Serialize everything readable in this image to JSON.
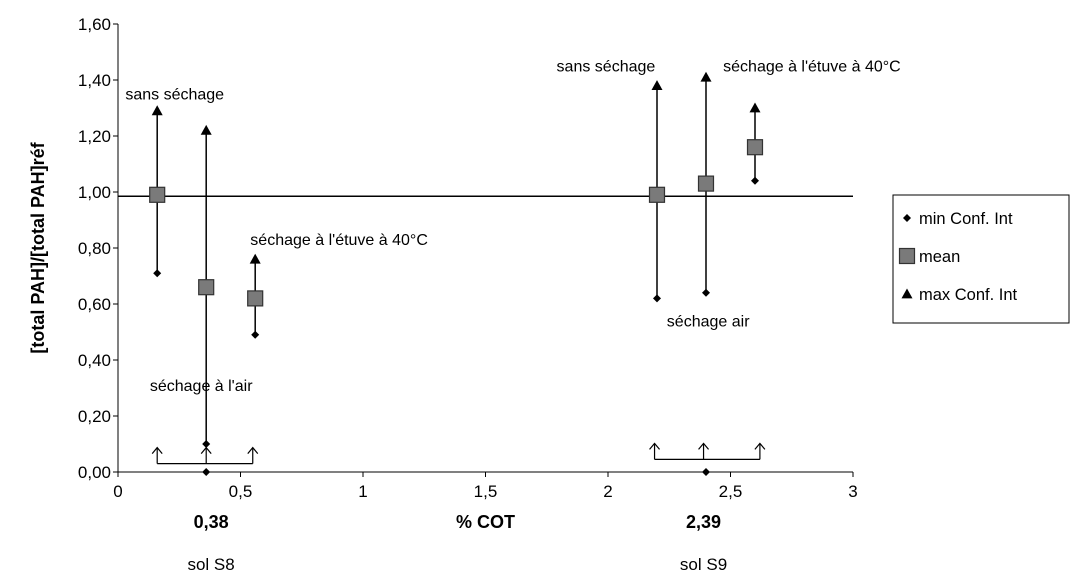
{
  "chart_data": {
    "type": "scatter",
    "xlabel": "% COT",
    "ylabel": "[total PAH]/[total PAH]réf",
    "xlim": [
      0,
      3
    ],
    "ylim": [
      0,
      1.6
    ],
    "x_ticks": [
      {
        "value": 0,
        "label": "0"
      },
      {
        "value": 0.5,
        "label": "0,5"
      },
      {
        "value": 1,
        "label": "1"
      },
      {
        "value": 1.5,
        "label": "1,5"
      },
      {
        "value": 2,
        "label": "2"
      },
      {
        "value": 2.5,
        "label": "2,5"
      },
      {
        "value": 3,
        "label": "3"
      }
    ],
    "y_ticks": [
      {
        "value": 0,
        "label": "0,00"
      },
      {
        "value": 0.2,
        "label": "0,20"
      },
      {
        "value": 0.4,
        "label": "0,40"
      },
      {
        "value": 0.6,
        "label": "0,60"
      },
      {
        "value": 0.8,
        "label": "0,80"
      },
      {
        "value": 1.0,
        "label": "1,00"
      },
      {
        "value": 1.2,
        "label": "1,20"
      },
      {
        "value": 1.4,
        "label": "1,40"
      },
      {
        "value": 1.6,
        "label": "1,60"
      }
    ],
    "grid": false,
    "reference_line_y": 0.985,
    "legend_position": "right",
    "legend": [
      {
        "marker": "diamond",
        "label": "min Conf. Int"
      },
      {
        "marker": "square",
        "label": "mean"
      },
      {
        "marker": "triangle",
        "label": "max Conf. Int"
      }
    ],
    "error_bars": [
      {
        "x": 0.16,
        "min": 0.71,
        "mean": 0.99,
        "max": 1.29
      },
      {
        "x": 0.36,
        "min": 0.1,
        "mean": 0.66,
        "max": 1.22
      },
      {
        "x": 0.56,
        "min": 0.49,
        "mean": 0.62,
        "max": 0.76
      },
      {
        "x": 2.2,
        "min": 0.62,
        "mean": 0.99,
        "max": 1.38
      },
      {
        "x": 2.4,
        "min": 0.64,
        "mean": 1.03,
        "max": 1.41
      },
      {
        "x": 2.6,
        "min": 1.04,
        "mean": 1.16,
        "max": 1.3
      }
    ],
    "extra_points": [
      {
        "marker": "diamond",
        "x": 0.36,
        "y": 0.0
      },
      {
        "marker": "diamond",
        "x": 2.4,
        "y": 0.0
      }
    ],
    "annotations": [
      {
        "text": "sans séchage",
        "x": 0.03,
        "y": 1.33
      },
      {
        "text": "séchage à l'étuve à 40°C",
        "x": 0.54,
        "y": 0.81
      },
      {
        "text": "séchage à l'air",
        "x": 0.13,
        "y": 0.29
      },
      {
        "text": "sans séchage",
        "x": 1.79,
        "y": 1.43
      },
      {
        "text": "séchage à l'étuve à 40°C",
        "x": 2.47,
        "y": 1.43
      },
      {
        "text": "séchage air",
        "x": 2.24,
        "y": 0.52
      }
    ],
    "arrow_groups": [
      {
        "x": [
          0.16,
          0.36,
          0.55
        ],
        "y_line": 0.03
      },
      {
        "x": [
          2.19,
          2.39,
          2.62
        ],
        "y_line": 0.045
      }
    ],
    "soil_labels": [
      {
        "value": "0,38",
        "name": "sol S8",
        "x": 0.38
      },
      {
        "value": "2,39",
        "name": "sol S9",
        "x": 2.39
      }
    ]
  }
}
